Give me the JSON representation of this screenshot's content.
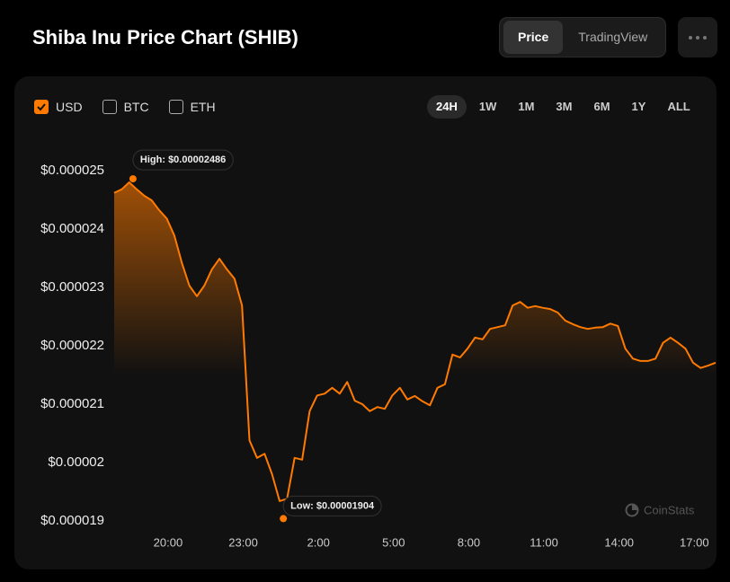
{
  "header": {
    "title": "Shiba Inu Price Chart (SHIB)",
    "tabs": [
      "Price",
      "TradingView"
    ],
    "active_tab": 0
  },
  "controls": {
    "currencies": [
      {
        "label": "USD",
        "checked": true
      },
      {
        "label": "BTC",
        "checked": false
      },
      {
        "label": "ETH",
        "checked": false
      }
    ],
    "ranges": [
      "24H",
      "1W",
      "1M",
      "3M",
      "6M",
      "1Y",
      "ALL"
    ],
    "active_range": 0
  },
  "watermark": "CoinStats",
  "chart_data": {
    "type": "area",
    "color": "#ff7a00",
    "x": [
      17.85,
      18.15,
      18.45,
      18.75,
      19.05,
      19.35,
      19.65,
      19.95,
      20.25,
      20.55,
      20.85,
      21.15,
      21.45,
      21.75,
      22.05,
      22.35,
      22.65,
      22.95,
      23.25,
      23.55,
      23.85,
      24.15,
      24.45,
      24.75,
      25.05,
      25.35,
      25.65,
      25.95,
      26.25,
      26.55,
      26.85,
      27.15,
      27.45,
      27.75,
      28.05,
      28.35,
      28.65,
      28.95,
      29.25,
      29.55,
      29.85,
      30.15,
      30.45,
      30.75,
      31.05,
      31.35,
      31.65,
      31.95,
      32.25,
      32.55,
      32.85,
      33.15,
      33.45,
      33.75,
      34.05,
      34.35,
      34.65,
      34.95,
      35.25,
      35.55,
      35.85,
      36.15,
      36.45,
      36.75,
      37.05,
      37.35,
      37.65,
      37.95,
      38.25,
      38.55,
      38.85,
      39.15,
      39.45,
      39.75,
      40.05,
      40.35,
      40.65,
      40.95,
      41.25,
      41.55,
      41.85
    ],
    "values": [
      2.462e-05,
      2.468e-05,
      2.48e-05,
      2.468e-05,
      2.457e-05,
      2.449e-05,
      2.432e-05,
      2.418e-05,
      2.389e-05,
      2.342e-05,
      2.303e-05,
      2.285e-05,
      2.303e-05,
      2.331e-05,
      2.349e-05,
      2.331e-05,
      2.315e-05,
      2.269e-05,
      2.038e-05,
      2.008e-05,
      2.015e-05,
      1.98e-05,
      1.934e-05,
      1.938e-05,
      2.008e-05,
      2.005e-05,
      2.088e-05,
      2.115e-05,
      2.118e-05,
      2.128e-05,
      2.118e-05,
      2.138e-05,
      2.106e-05,
      2.1e-05,
      2.088e-05,
      2.095e-05,
      2.092e-05,
      2.115e-05,
      2.128e-05,
      2.108e-05,
      2.114e-05,
      2.105e-05,
      2.098e-05,
      2.128e-05,
      2.134e-05,
      2.185e-05,
      2.18e-05,
      2.195e-05,
      2.214e-05,
      2.211e-05,
      2.229e-05,
      2.232e-05,
      2.235e-05,
      2.269e-05,
      2.275e-05,
      2.265e-05,
      2.268e-05,
      2.265e-05,
      2.263e-05,
      2.257e-05,
      2.243e-05,
      2.237e-05,
      2.232e-05,
      2.229e-05,
      2.231e-05,
      2.232e-05,
      2.238e-05,
      2.234e-05,
      2.195e-05,
      2.178e-05,
      2.174e-05,
      2.174e-05,
      2.178e-05,
      2.205e-05,
      2.214e-05,
      2.205e-05,
      2.195e-05,
      2.171e-05,
      2.162e-05,
      2.166e-05,
      2.171e-05
    ],
    "xlim": [
      17.85,
      41.85
    ],
    "xticks": [
      {
        "value": 20,
        "label": "20:00"
      },
      {
        "value": 23,
        "label": "23:00"
      },
      {
        "value": 26,
        "label": "2:00"
      },
      {
        "value": 29,
        "label": "5:00"
      },
      {
        "value": 32,
        "label": "8:00"
      },
      {
        "value": 35,
        "label": "11:00"
      },
      {
        "value": 38,
        "label": "14:00"
      },
      {
        "value": 41,
        "label": "17:00"
      }
    ],
    "ylim": [
      1.88e-05,
      2.55e-05
    ],
    "yticks": [
      {
        "value": 2.5e-05,
        "label": "$0.000025"
      },
      {
        "value": 2.4e-05,
        "label": "$0.000024"
      },
      {
        "value": 2.3e-05,
        "label": "$0.000023"
      },
      {
        "value": 2.2e-05,
        "label": "$0.000022"
      },
      {
        "value": 2.1e-05,
        "label": "$0.000021"
      },
      {
        "value": 2e-05,
        "label": "$0.00002"
      },
      {
        "value": 1.9e-05,
        "label": "$0.000019"
      }
    ],
    "annotations": [
      {
        "text": "High: $0.00002486",
        "x": 18.6,
        "y": 2.486e-05
      },
      {
        "text": "Low: $0.00001904",
        "x": 24.6,
        "y": 1.904e-05
      }
    ]
  }
}
